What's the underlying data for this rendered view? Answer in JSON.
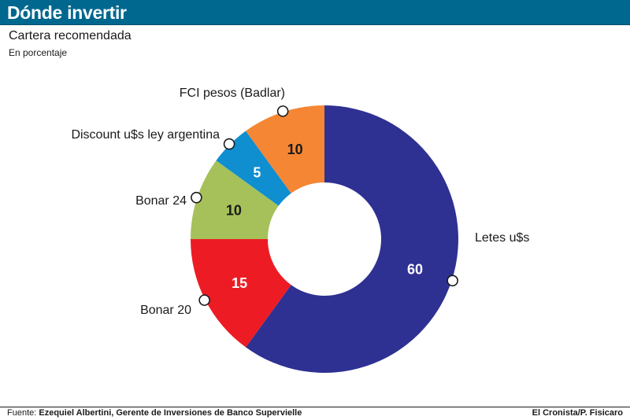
{
  "header": {
    "title": "Dónde invertir"
  },
  "subtitle": "Cartera recomendada",
  "units": "En porcentaje",
  "footer": {
    "source_prefix": "Fuente:",
    "source_text": "Ezequiel Albertini, Gerente de Inversiones de Banco Supervielle",
    "credit": "El Cronista/P. Fisicaro"
  },
  "chart_data": {
    "type": "pie",
    "donut": true,
    "title": "Cartera recomendada",
    "subtitle": "En porcentaje",
    "slices": [
      {
        "name": "Letes u$s",
        "value": 60,
        "color": "#2e3192",
        "text_color": "#ffffff"
      },
      {
        "name": "Bonar 20",
        "value": 15,
        "color": "#ed1c24",
        "text_color": "#ffffff"
      },
      {
        "name": "Bonar 24",
        "value": 10,
        "color": "#a6c15a",
        "text_color": "#1a1a1a"
      },
      {
        "name": "Discount u$s ley argentina",
        "value": 5,
        "color": "#0f8ed0",
        "text_color": "#ffffff"
      },
      {
        "name": "FCI pesos (Badlar)",
        "value": 10,
        "color": "#f58634",
        "text_color": "#1a1a1a"
      }
    ],
    "start_angle_deg": 0,
    "direction": "clockwise"
  }
}
